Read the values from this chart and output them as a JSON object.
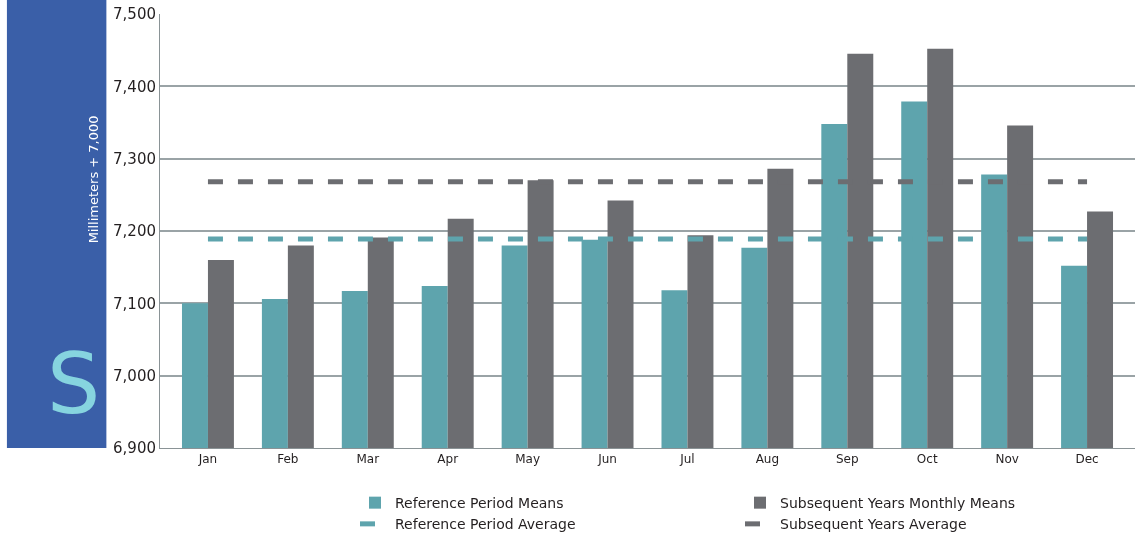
{
  "chart_data": {
    "type": "bar",
    "ylabel": "Millimeters + 7,000",
    "categories": [
      "Jan",
      "Feb",
      "Mar",
      "Apr",
      "May",
      "Jun",
      "Jul",
      "Aug",
      "Sep",
      "Oct",
      "Nov",
      "Dec"
    ],
    "series": [
      {
        "name": "Reference Period Means",
        "color": "#5ea4ad",
        "values": [
          7100,
          7106,
          7117,
          7124,
          7180,
          7188,
          7118,
          7177,
          7348,
          7379,
          7278,
          7152
        ]
      },
      {
        "name": "Subsequent Years Monthly Means",
        "color": "#6c6d71",
        "values": [
          7160,
          7180,
          7191,
          7217,
          7270,
          7242,
          7194,
          7286,
          7445,
          7452,
          7346,
          7227
        ]
      }
    ],
    "ref_lines": [
      {
        "axis": "y",
        "value": 7189,
        "label": "Reference Period Average",
        "color": "#5ea4ad",
        "line_style": "dashed"
      },
      {
        "axis": "y",
        "value": 7268,
        "label": "Subsequent Years Average",
        "color": "#6c6d71",
        "line_style": "dashed"
      }
    ],
    "annotations": [
      "S"
    ],
    "ylim": [
      6900,
      7500
    ],
    "yticks": [
      {
        "value": 6900,
        "label": "6,900"
      },
      {
        "value": 7000,
        "label": "7,000"
      },
      {
        "value": 7100,
        "label": "7,100"
      },
      {
        "value": 7200,
        "label": "7,200"
      },
      {
        "value": 7300,
        "label": "7,300"
      },
      {
        "value": 7400,
        "label": "7,400"
      },
      {
        "value": 7500,
        "label": "7,500"
      }
    ],
    "grid": "y",
    "legend": "bottom"
  }
}
